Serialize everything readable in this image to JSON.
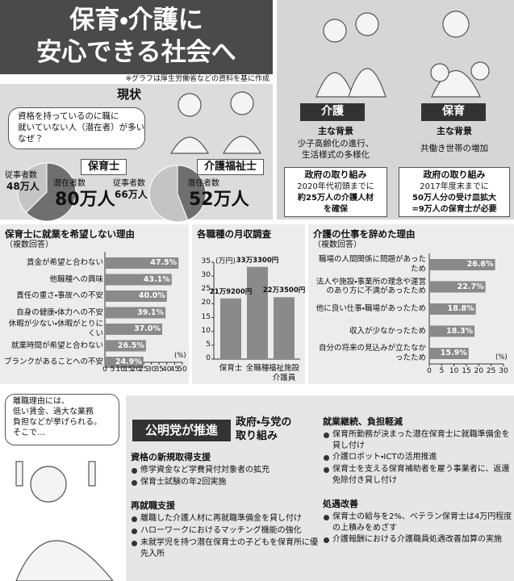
{
  "header": {
    "title": [
      "保育・介護に",
      "安心できる社会へ"
    ],
    "note": "※グラフは厚生労働省などの資料を基に作成"
  },
  "current": {
    "heading": "現状",
    "question": [
      "資格を持っているのに職に",
      "就いていない人（潜在者）が多い",
      "なぜ？"
    ]
  },
  "care": {
    "tag": "介護",
    "background_heading": "主な背景",
    "background": [
      "少子高齢化の進行、",
      "生活様式の多様化"
    ],
    "gov_heading": "政府の取り組み",
    "gov": [
      "2020年代初頭までに",
      "約25万人の介護人材",
      "を確保"
    ]
  },
  "childcare": {
    "tag": "保育",
    "background_heading": "主な背景",
    "background": [
      "共働き世帯の増加"
    ],
    "gov_heading": "政府の取り組み",
    "gov": [
      "2017年度末までに",
      "50万人分の受け皿拡大",
      "=9万人の保育士が必要"
    ]
  },
  "chart_data": [
    {
      "type": "pie",
      "title": "保育士",
      "categories": [
        "従事者数",
        "潜在者数"
      ],
      "values": [
        48,
        80
      ],
      "value_labels": [
        "48万人",
        "80万人"
      ],
      "colors": [
        "#c4c4c4",
        "#6f6f6f"
      ]
    },
    {
      "type": "pie",
      "title": "介護福祉士",
      "categories": [
        "従事者数",
        "潜在者数"
      ],
      "values": [
        66,
        52
      ],
      "value_labels": [
        "66万人",
        "52万人"
      ],
      "colors": [
        "#c4c4c4",
        "#6f6f6f"
      ]
    },
    {
      "type": "bar",
      "horizontal": true,
      "title": "保育士に就業を希望しない理由",
      "subtitle": "（複数回答）",
      "unit": "(%)",
      "categories": [
        "賃金が希望と合わない",
        "他職種への興味",
        "責任の重さ・事故への不安",
        "自身の健康・体力への不安",
        "休暇が少ない・休暇がとりにくい",
        "就業時間が希望と合わない",
        "ブランクがあることへの不安"
      ],
      "values": [
        47.5,
        43.1,
        40.0,
        39.1,
        37.0,
        26.5,
        24.9
      ],
      "value_labels": [
        "47.5%",
        "43.1%",
        "40.0%",
        "39.1%",
        "37.0%",
        "26.5%",
        "24.9%"
      ],
      "color": "#8a8a8a",
      "xlim": [
        0,
        50
      ],
      "xticks": [
        0,
        5,
        10,
        15,
        20,
        25,
        30,
        35,
        40,
        45,
        50
      ]
    },
    {
      "type": "bar",
      "horizontal": false,
      "title": "各職種の月収調査",
      "unit": "(万円)",
      "categories": [
        "保育士",
        "全職種",
        "福祉施設介護員"
      ],
      "values": [
        21.92,
        33.33,
        22.35
      ],
      "value_labels": [
        "21万9200円",
        "33万3300円",
        "22万3500円"
      ],
      "color": "#8a8a8a",
      "ylim": [
        0,
        35
      ],
      "yticks": [
        0,
        5,
        10,
        15,
        20,
        25,
        30,
        35
      ]
    },
    {
      "type": "bar",
      "horizontal": true,
      "title": "介護の仕事を辞めた理由",
      "subtitle": "（複数回答）",
      "unit": "(%)",
      "categories": [
        "職場の人間関係に問題があったため",
        "法人や施設・事業所の理念や運営のあり方に不満があったため",
        "他に良い仕事・職場があったため",
        "収入が少なかったため",
        "自分の将来の見込みが立たなかったため"
      ],
      "values": [
        26.6,
        22.7,
        18.8,
        18.3,
        15.9
      ],
      "value_labels": [
        "26.6%",
        "22.7%",
        "18.8%",
        "18.3%",
        "15.9%"
      ],
      "color": "#8a8a8a",
      "xlim": [
        0,
        30
      ],
      "xticks": [
        0,
        5,
        10,
        15,
        20,
        25,
        30
      ]
    }
  ],
  "policy": {
    "speech": [
      "離職理由には、",
      "低い賃金、過大な業務",
      "負担などが挙げられる。",
      "そこで…"
    ],
    "badge": "公明党が推進",
    "subtitle": [
      "政府・与党の",
      "取り組み"
    ],
    "sections": [
      {
        "heading": "資格の新規取得支援",
        "items": [
          "修学資金など学費貸付対象者の拡充",
          "保育士試験の年2回実施"
        ]
      },
      {
        "heading": "再就職支援",
        "items": [
          "離職した介護人材に再就職準備金を貸し付け",
          "ハローワークにおけるマッチング機能の強化",
          "未就学児を持つ潜在保育士の子どもを保育所に優先入所"
        ]
      },
      {
        "heading": "就業継続、負担軽減",
        "items": [
          "保育所勤務が決まった潜在保育士に就職準備金を貸し付け",
          "介護ロボット・ICTの活用推進",
          "保育士を支える保育補助者を雇う事業者に、返還免除付き貸し付け"
        ]
      },
      {
        "heading": "処遇改善",
        "items": [
          "保育士の給与を2%、ベテラン保育士は4万円程度の上積みをめざす",
          "介護報酬における介護職員処遇改善加算の実施"
        ]
      }
    ]
  }
}
